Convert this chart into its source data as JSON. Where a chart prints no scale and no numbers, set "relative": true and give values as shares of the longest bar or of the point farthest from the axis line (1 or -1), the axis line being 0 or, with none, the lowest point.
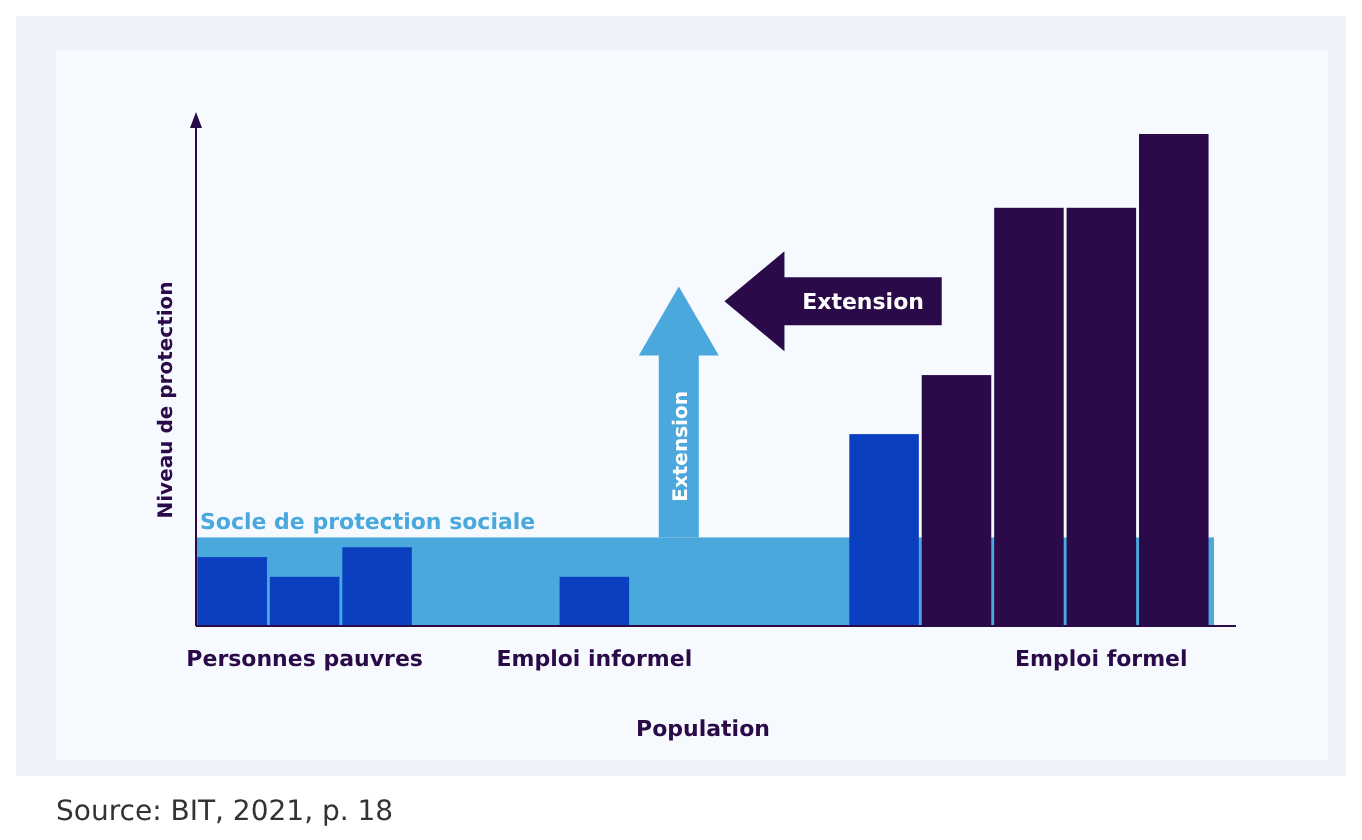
{
  "chart_data": {
    "type": "bar",
    "relative": true,
    "xlabel": "Population",
    "ylabel": "Niveau de protection",
    "categories": [
      null,
      "Personnes pauvres",
      null,
      null,
      null,
      "Emploi informel",
      null,
      null,
      null,
      null,
      null,
      null,
      "Emploi formel",
      null
    ],
    "values": [
      0.14,
      0.1,
      0.16,
      null,
      null,
      0.1,
      null,
      null,
      null,
      0.39,
      0.51,
      0.85,
      0.85,
      1
    ],
    "colors": [
      "#0a3fbf",
      "#0a3fbf",
      "#0a3fbf",
      null,
      null,
      "#0a3fbf",
      null,
      null,
      null,
      "#0a3fbf",
      "#2b0a4a",
      "#2b0a4a",
      "#2b0a4a",
      "#2b0a4a"
    ],
    "bands": [
      {
        "axis": "y",
        "from": 0,
        "to": 0.18,
        "label": "Socle de protection sociale",
        "color": "#4aa8dc"
      }
    ],
    "annotations": [
      "Extension",
      "Extension",
      "Source: BIT, 2021, p. 18"
    ]
  }
}
